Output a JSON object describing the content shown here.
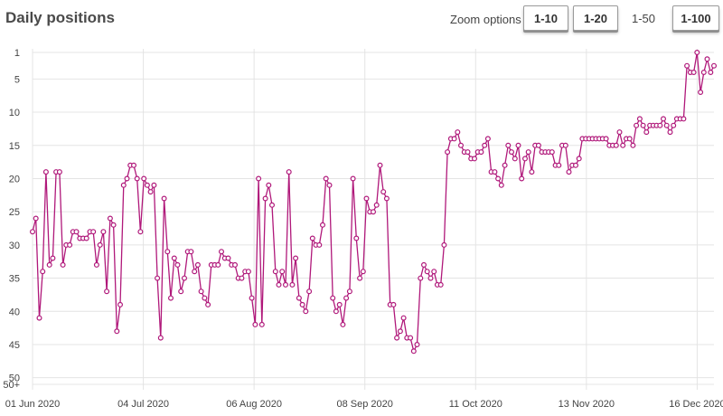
{
  "header": {
    "title": "Daily positions",
    "zoom_label": "Zoom options",
    "zoom_buttons": [
      {
        "label": "1-10",
        "active": false
      },
      {
        "label": "1-20",
        "active": false
      },
      {
        "label": "1-50",
        "active": true
      },
      {
        "label": "1-100",
        "active": false
      }
    ]
  },
  "chart_data": {
    "type": "line",
    "title": "Daily positions",
    "color": "#b0187a",
    "y_inverted": true,
    "ylim": [
      0,
      51
    ],
    "y_ticks": [
      {
        "label": "1",
        "value": 1
      },
      {
        "label": "5",
        "value": 5
      },
      {
        "label": "10",
        "value": 10
      },
      {
        "label": "15",
        "value": 15
      },
      {
        "label": "20",
        "value": 20
      },
      {
        "label": "25",
        "value": 25
      },
      {
        "label": "30",
        "value": 30
      },
      {
        "label": "35",
        "value": 35
      },
      {
        "label": "40",
        "value": 40
      },
      {
        "label": "45",
        "value": 45
      },
      {
        "label": "50",
        "value": 50
      },
      {
        "label": "50+",
        "value": 51
      }
    ],
    "x_ticks": [
      "01 Jun 2020",
      "04 Jul 2020",
      "06 Aug 2020",
      "08 Sep 2020",
      "11 Oct 2020",
      "13 Nov 2020",
      "16 Dec 2020"
    ],
    "x_start": "2020-06-01",
    "x_end": "2020-12-21",
    "grid": true,
    "series": [
      {
        "values": [
          28,
          26,
          41,
          34,
          19,
          33,
          32,
          19,
          19,
          33,
          30,
          30,
          28,
          28,
          29,
          29,
          29,
          28,
          28,
          33,
          30,
          28,
          37,
          26,
          27,
          43,
          39,
          21,
          20,
          18,
          18,
          20,
          28,
          20,
          21,
          22,
          21,
          35,
          44,
          23,
          31,
          38,
          32,
          33,
          37,
          35,
          31,
          31,
          34,
          33,
          37,
          38,
          39,
          33,
          33,
          33,
          31,
          32,
          32,
          33,
          33,
          35,
          35,
          34,
          34,
          38,
          42,
          20,
          42,
          23,
          21,
          24,
          34,
          36,
          34,
          36,
          19,
          36,
          32,
          38,
          39,
          40,
          37,
          29,
          30,
          30,
          27,
          20,
          21,
          38,
          40,
          39,
          42,
          38,
          37,
          20,
          29,
          35,
          34,
          23,
          25,
          25,
          24,
          18,
          22,
          23,
          39,
          39,
          44,
          43,
          41,
          44,
          44,
          46,
          45,
          35,
          33,
          34,
          35,
          34,
          36,
          36,
          30,
          16,
          14,
          14,
          13,
          15,
          16,
          16,
          17,
          17,
          16,
          16,
          15,
          14,
          19,
          19,
          20,
          21,
          18,
          15,
          16,
          17,
          15,
          20,
          17,
          16,
          19,
          15,
          15,
          16,
          16,
          16,
          16,
          18,
          18,
          15,
          15,
          19,
          18,
          18,
          17,
          14,
          14,
          14,
          14,
          14,
          14,
          14,
          14,
          15,
          15,
          15,
          13,
          15,
          14,
          14,
          15,
          12,
          11,
          12,
          13,
          12,
          12,
          12,
          12,
          11,
          12,
          13,
          12,
          11,
          11,
          11,
          3,
          4,
          4,
          1,
          7,
          4,
          2,
          4,
          3
        ]
      }
    ]
  }
}
